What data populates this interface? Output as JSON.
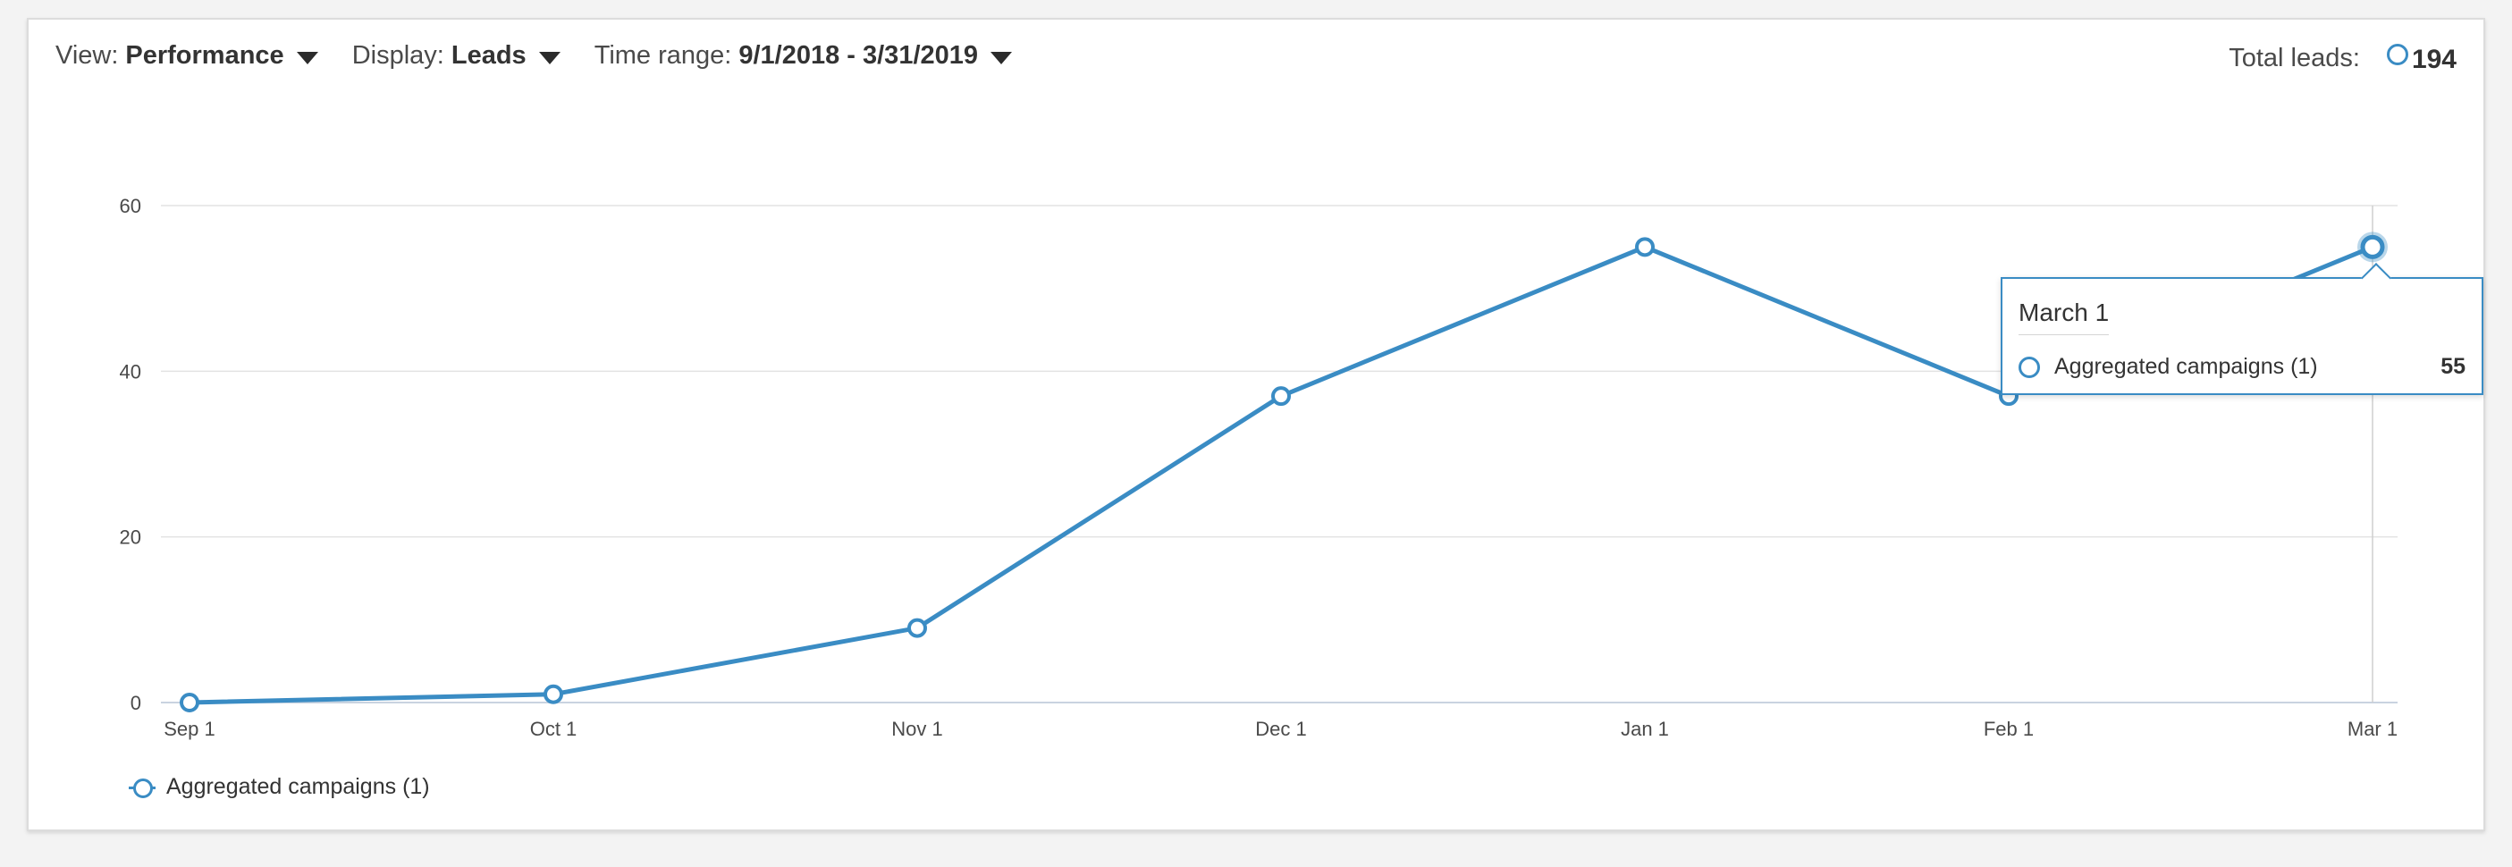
{
  "toolbar": {
    "view_label": "View:",
    "view_value": "Performance",
    "display_label": "Display:",
    "display_value": "Leads",
    "time_label": "Time range:",
    "time_value": "9/1/2018 - 3/31/2019"
  },
  "total": {
    "label": "Total leads:",
    "value": "194"
  },
  "tooltip": {
    "date": "March 1",
    "series": "Aggregated campaigns (1)",
    "value": "55"
  },
  "colors": {
    "series": "#3a8cc4",
    "grid": "#e3e3e3"
  },
  "chart_data": {
    "type": "line",
    "categories": [
      "Sep 1",
      "Oct 1",
      "Nov 1",
      "Dec 1",
      "Jan 1",
      "Feb 1",
      "Mar 1"
    ],
    "series": [
      {
        "name": "Aggregated campaigns (1)",
        "values": [
          0,
          1,
          9,
          37,
          55,
          37,
          55
        ]
      }
    ],
    "y_ticks": [
      0,
      20,
      40,
      60
    ],
    "ylim": [
      0,
      60
    ],
    "grid": true,
    "legend": "bottom-left",
    "highlighted_category": "Mar 1"
  }
}
